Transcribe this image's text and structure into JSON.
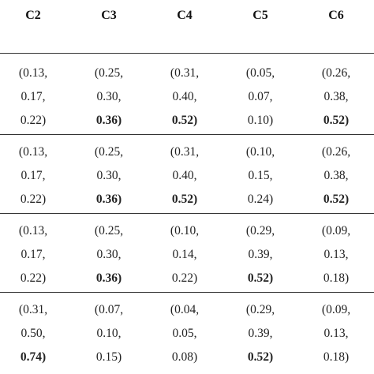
{
  "table": {
    "headers": [
      "C2",
      "C3",
      "C4",
      "C5",
      "C6"
    ],
    "rows": [
      [
        {
          "lines": [
            "(0.13,",
            "0.17,",
            "0.22)"
          ],
          "bold_last": false
        },
        {
          "lines": [
            "(0.25,",
            "0.30,",
            "0.36)"
          ],
          "bold_last": true
        },
        {
          "lines": [
            "(0.31,",
            "0.40,",
            "0.52)"
          ],
          "bold_last": true
        },
        {
          "lines": [
            "(0.05,",
            "0.07,",
            "0.10)"
          ],
          "bold_last": false
        },
        {
          "lines": [
            "(0.26,",
            "0.38,",
            "0.52)"
          ],
          "bold_last": true
        }
      ],
      [
        {
          "lines": [
            "(0.13,",
            "0.17,",
            "0.22)"
          ],
          "bold_last": false
        },
        {
          "lines": [
            "(0.25,",
            "0.30,",
            "0.36)"
          ],
          "bold_last": true
        },
        {
          "lines": [
            "(0.31,",
            "0.40,",
            "0.52)"
          ],
          "bold_last": true
        },
        {
          "lines": [
            "(0.10,",
            "0.15,",
            "0.24)"
          ],
          "bold_last": false
        },
        {
          "lines": [
            "(0.26,",
            "0.38,",
            "0.52)"
          ],
          "bold_last": true
        }
      ],
      [
        {
          "lines": [
            "(0.13,",
            "0.17,",
            "0.22)"
          ],
          "bold_last": false
        },
        {
          "lines": [
            "(0.25,",
            "0.30,",
            "0.36)"
          ],
          "bold_last": true
        },
        {
          "lines": [
            "(0.10,",
            "0.14,",
            "0.22)"
          ],
          "bold_last": false
        },
        {
          "lines": [
            "(0.29,",
            "0.39,",
            "0.52)"
          ],
          "bold_last": true
        },
        {
          "lines": [
            "(0.09,",
            "0.13,",
            "0.18)"
          ],
          "bold_last": false
        }
      ],
      [
        {
          "lines": [
            "(0.31,",
            "0.50,",
            "0.74)"
          ],
          "bold_last": true
        },
        {
          "lines": [
            "(0.07,",
            "0.10,",
            "0.15)"
          ],
          "bold_last": false
        },
        {
          "lines": [
            "(0.04,",
            "0.05,",
            "0.08)"
          ],
          "bold_last": false
        },
        {
          "lines": [
            "(0.29,",
            "0.39,",
            "0.52)"
          ],
          "bold_last": true
        },
        {
          "lines": [
            "(0.09,",
            "0.13,",
            "0.18)"
          ],
          "bold_last": false
        }
      ]
    ]
  }
}
